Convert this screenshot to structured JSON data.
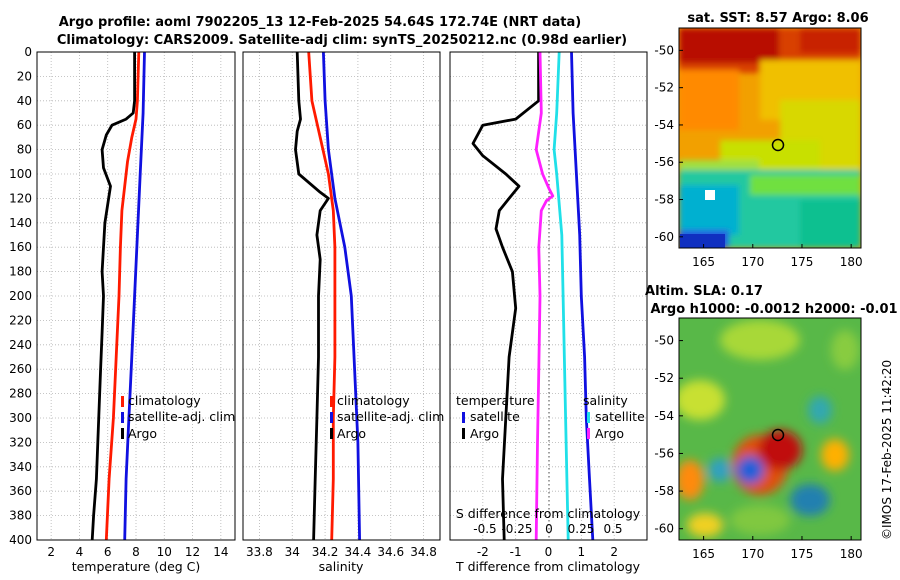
{
  "header": {
    "line1": "Argo profile: aoml 7902205_13 12-Feb-2025 54.64S 172.74E (NRT data)",
    "line2": "Climatology: CARS2009. Satellite-adj clim: synTS_20250212.nc (0.98d earlier)"
  },
  "colors": {
    "climatology": "#ff1a00",
    "satellite": "#1010e0",
    "argo": "#000000",
    "s_clim": "#ff20ff",
    "s_sat": "#20e0e8",
    "s_argo": "#000000"
  },
  "chart_data": [
    {
      "type": "line",
      "name": "temperature-panel",
      "xlabel": "temperature (deg C)",
      "ylabel": "",
      "xlim": [
        1,
        15
      ],
      "ylim": [
        400,
        0
      ],
      "xticks": [
        "2",
        "4",
        "6",
        "8",
        "10",
        "12",
        "14"
      ],
      "yticks": [
        "0",
        "20",
        "40",
        "60",
        "80",
        "100",
        "120",
        "140",
        "160",
        "180",
        "200",
        "220",
        "240",
        "260",
        "280",
        "300",
        "320",
        "340",
        "360",
        "380",
        "400"
      ],
      "legend": [
        "climatology",
        "satellite-adj. clim",
        "Argo"
      ],
      "series": [
        {
          "name": "climatology",
          "depth": [
            0,
            40,
            55,
            70,
            90,
            110,
            130,
            160,
            200,
            250,
            300,
            350,
            400
          ],
          "values": [
            8.2,
            8.1,
            8.0,
            7.7,
            7.4,
            7.2,
            7.0,
            6.9,
            6.8,
            6.6,
            6.4,
            6.1,
            5.9
          ]
        },
        {
          "name": "satellite-adj. clim",
          "depth": [
            0,
            50,
            100,
            150,
            200,
            250,
            300,
            350,
            400
          ],
          "values": [
            8.6,
            8.5,
            8.3,
            8.1,
            7.9,
            7.7,
            7.5,
            7.3,
            7.2
          ]
        },
        {
          "name": "Argo",
          "depth": [
            0,
            40,
            50,
            55,
            60,
            68,
            80,
            95,
            110,
            125,
            140,
            160,
            180,
            200,
            230,
            260,
            290,
            320,
            350,
            380,
            400
          ],
          "values": [
            7.9,
            7.9,
            7.8,
            7.3,
            6.3,
            5.9,
            5.6,
            5.7,
            6.2,
            6.0,
            5.8,
            5.7,
            5.6,
            5.7,
            5.6,
            5.5,
            5.4,
            5.3,
            5.2,
            5.0,
            4.9
          ]
        }
      ]
    },
    {
      "type": "line",
      "name": "salinity-panel",
      "xlabel": "salinity",
      "ylabel": "",
      "xlim": [
        33.7,
        34.9
      ],
      "ylim": [
        400,
        0
      ],
      "xticks": [
        "33.8",
        "34",
        "34.2",
        "34.4",
        "34.6",
        "34.8"
      ],
      "legend": [
        "climatology",
        "satellite-adj. clim",
        "Argo"
      ],
      "series": [
        {
          "name": "climatology",
          "depth": [
            0,
            40,
            70,
            100,
            130,
            160,
            200,
            250,
            300,
            350,
            400
          ],
          "values": [
            34.1,
            34.12,
            34.17,
            34.22,
            34.25,
            34.26,
            34.26,
            34.26,
            34.25,
            34.25,
            34.24
          ]
        },
        {
          "name": "satellite-adj. clim",
          "depth": [
            0,
            40,
            80,
            120,
            160,
            200,
            260,
            320,
            400
          ],
          "values": [
            34.19,
            34.2,
            34.22,
            34.26,
            34.32,
            34.36,
            34.38,
            34.4,
            34.41
          ]
        },
        {
          "name": "Argo",
          "depth": [
            0,
            40,
            55,
            65,
            80,
            100,
            115,
            120,
            130,
            150,
            170,
            200,
            250,
            300,
            350,
            400
          ],
          "values": [
            34.03,
            34.04,
            34.05,
            34.03,
            34.02,
            34.04,
            34.17,
            34.22,
            34.17,
            34.15,
            34.17,
            34.16,
            34.16,
            34.15,
            34.14,
            34.13
          ]
        }
      ]
    },
    {
      "type": "line",
      "name": "difference-panel",
      "xlabel": "T difference from climatology",
      "x2label": "S difference from climatology",
      "xlim": [
        -3,
        3
      ],
      "ylim": [
        400,
        0
      ],
      "xticks": [
        "-2",
        "-1",
        "0",
        "1",
        "2"
      ],
      "x2ticks": [
        "-0.5",
        "-0.25",
        "0",
        "0.25",
        "0.5"
      ],
      "legend_t_title": "temperature",
      "legend_s_title": "salinity",
      "legend_t": [
        "satellite",
        "Argo"
      ],
      "legend_s": [
        "satellite",
        "Argo"
      ],
      "series": [
        {
          "name": "T satellite",
          "depth": [
            0,
            50,
            100,
            150,
            200,
            250,
            300,
            350,
            400
          ],
          "values": [
            0.7,
            0.75,
            0.85,
            0.95,
            1.0,
            1.1,
            1.15,
            1.25,
            1.35
          ]
        },
        {
          "name": "T Argo",
          "depth": [
            0,
            40,
            55,
            60,
            75,
            85,
            100,
            110,
            120,
            130,
            145,
            160,
            180,
            210,
            250,
            300,
            350,
            400
          ],
          "values": [
            -0.3,
            -0.3,
            -1.0,
            -2.0,
            -2.3,
            -2.0,
            -1.3,
            -0.9,
            -1.2,
            -1.5,
            -1.6,
            -1.4,
            -1.1,
            -1.0,
            -1.2,
            -1.3,
            -1.4,
            -1.35
          ]
        },
        {
          "name": "S satellite",
          "depth": [
            0,
            50,
            80,
            100,
            150,
            200,
            300,
            400
          ],
          "values": [
            0.08,
            0.06,
            0.04,
            0.06,
            0.1,
            0.11,
            0.13,
            0.15
          ]
        },
        {
          "name": "S Argo",
          "depth": [
            0,
            50,
            80,
            100,
            112,
            118,
            122,
            130,
            160,
            200,
            260,
            320,
            400
          ],
          "values": [
            -0.07,
            -0.06,
            -0.1,
            -0.05,
            0.0,
            0.03,
            -0.02,
            -0.06,
            -0.08,
            -0.07,
            -0.08,
            -0.09,
            -0.1
          ]
        }
      ]
    }
  ],
  "maps": {
    "sst": {
      "title": "sat. SST: 8.57 Argo: 8.06",
      "yticks": [
        "-50",
        "-52",
        "-54",
        "-56",
        "-58",
        "-60"
      ],
      "xticks": [
        "165",
        "170",
        "175",
        "180"
      ]
    },
    "sla": {
      "title1": "Altim. SLA: 0.17",
      "title2": "Argo h1000: -0.0012 h2000: -0.01",
      "yticks": [
        "-50",
        "-52",
        "-54",
        "-56",
        "-58",
        "-60"
      ],
      "xticks": [
        "165",
        "170",
        "175",
        "180"
      ]
    }
  },
  "credit": "©IMOS 17-Feb-2025 11:42:20"
}
